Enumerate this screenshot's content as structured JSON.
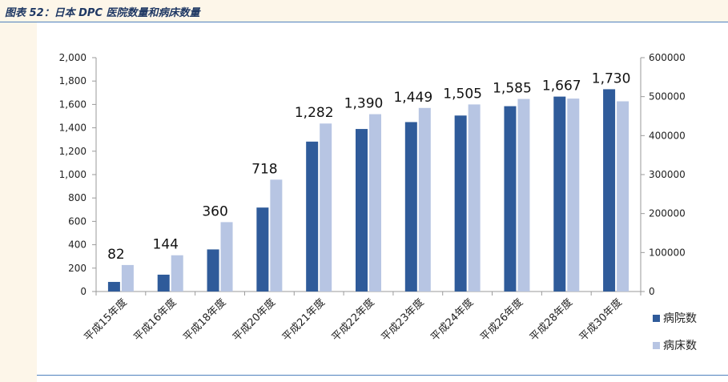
{
  "caption": "图表 52：日本 DPC 医院数量和病床数量",
  "chart_data": {
    "type": "bar",
    "categories": [
      "平成15年度",
      "平成16年度",
      "平成18年度",
      "平成20年度",
      "平成21年度",
      "平成22年度",
      "平成23年度",
      "平成24年度",
      "平成26年度",
      "平成28年度",
      "平成30年度"
    ],
    "series": [
      {
        "name": "病院数",
        "axis": "left",
        "color": "#2f5b9a",
        "values": [
          82,
          144,
          360,
          718,
          1282,
          1390,
          1449,
          1505,
          1585,
          1667,
          1730
        ],
        "labels": [
          "82",
          "144",
          "360",
          "718",
          "1,282",
          "1,390",
          "1,449",
          "1,505",
          "1,585",
          "1,667",
          "1,730"
        ]
      },
      {
        "name": "病床数",
        "axis": "right",
        "color": "#b7c5e3",
        "values": [
          68000,
          93000,
          178000,
          287000,
          431000,
          455000,
          471000,
          480000,
          494000,
          495000,
          488000
        ]
      }
    ],
    "left_axis": {
      "ylim": [
        0,
        2000
      ],
      "ticks": [
        0,
        200,
        400,
        600,
        800,
        1000,
        1200,
        1400,
        1600,
        1800,
        2000
      ],
      "tick_labels": [
        "0",
        "200",
        "400",
        "600",
        "800",
        "1,000",
        "1,200",
        "1,400",
        "1,600",
        "1,800",
        "2,000"
      ]
    },
    "right_axis": {
      "ylim": [
        0,
        600000
      ],
      "ticks": [
        0,
        100000,
        200000,
        300000,
        400000,
        500000,
        600000
      ],
      "tick_labels": [
        "0",
        "100000",
        "200000",
        "300000",
        "400000",
        "500000",
        "600000"
      ]
    },
    "grid": false,
    "legend_position": "right"
  }
}
